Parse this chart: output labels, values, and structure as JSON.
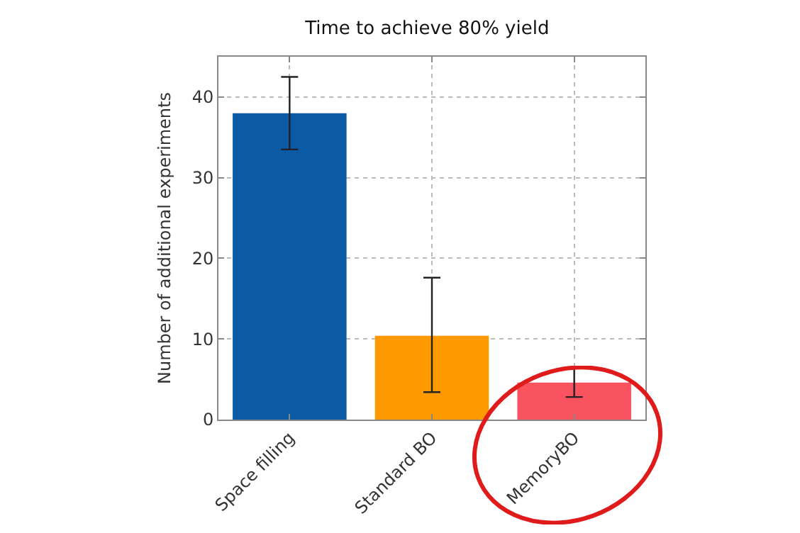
{
  "chart_data": {
    "type": "bar",
    "title": "Time to achieve 80% yield",
    "ylabel": "Number of additional experiments",
    "categories": [
      "Space filling",
      "Standard BO",
      "MemoryBO"
    ],
    "values": [
      38,
      10.4,
      4.6
    ],
    "colors": [
      "#0b5aa6",
      "#ff9900",
      "#f8535f"
    ],
    "errors": [
      [
        33.5,
        42.5
      ],
      [
        3.4,
        17.6
      ],
      [
        2.8,
        6.4
      ]
    ],
    "ylim": [
      0,
      45
    ],
    "yticks": [
      0,
      10,
      20,
      30,
      40
    ],
    "grid": true
  }
}
